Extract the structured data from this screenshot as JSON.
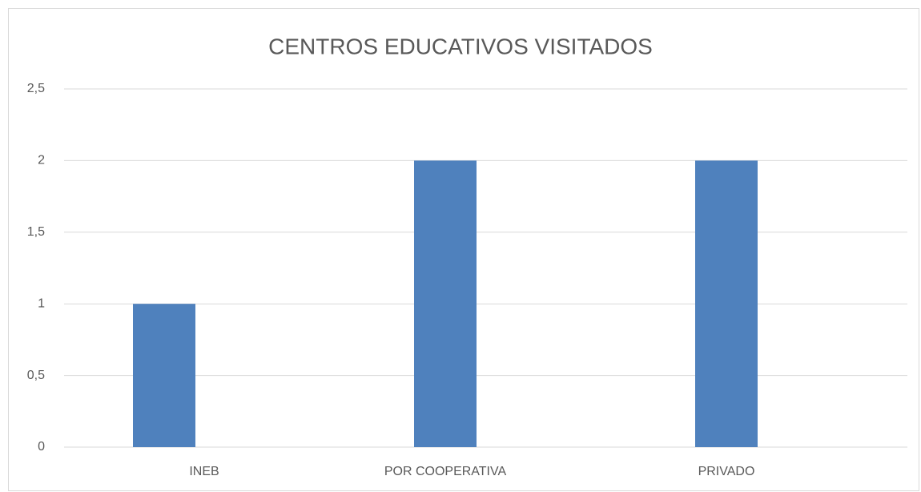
{
  "chart_data": {
    "type": "bar",
    "title": "CENTROS EDUCATIVOS VISITADOS",
    "categories": [
      "INEB",
      "POR COOPERATIVA",
      "PRIVADO"
    ],
    "values": [
      1,
      2,
      2
    ],
    "color": "#4f81bd",
    "ylim": [
      0,
      2.5
    ],
    "yticks": [
      0,
      {
        "value": 0.5,
        "label": "0,5"
      },
      1,
      {
        "value": 1.5,
        "label": "1,5"
      },
      2,
      {
        "value": 2.5,
        "label": "2,5"
      }
    ],
    "grid": true
  }
}
